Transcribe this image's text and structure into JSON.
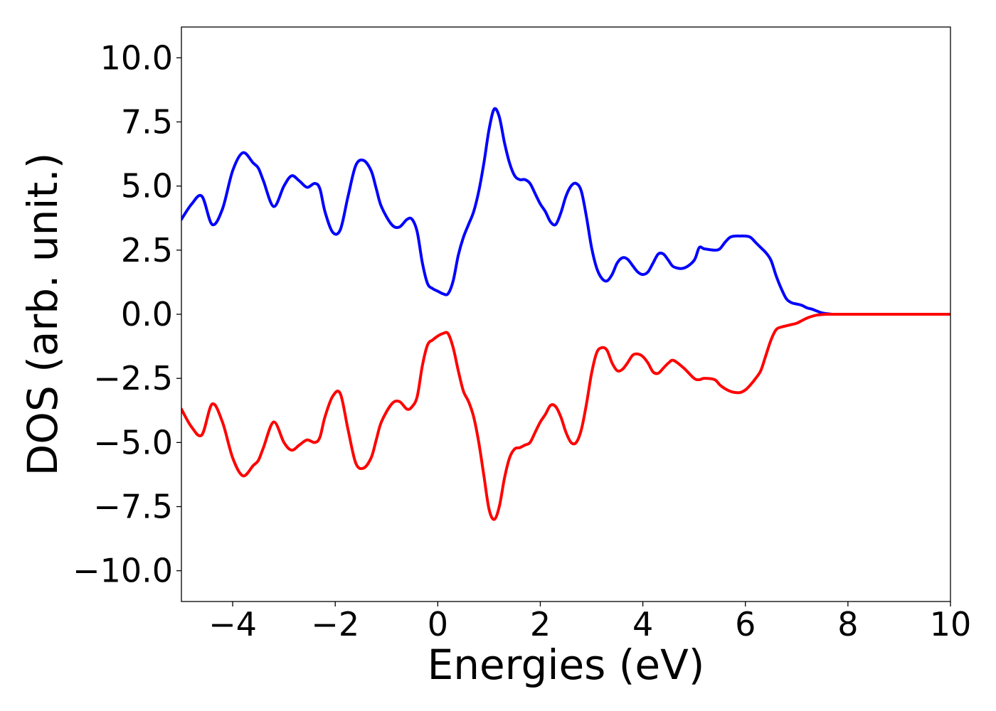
{
  "chart_data": {
    "type": "line",
    "title": "",
    "xlabel": "Energies (eV)",
    "ylabel": "DOS (arb. unit.)",
    "xlim": [
      -5,
      10
    ],
    "ylim": [
      -11.2,
      11.2
    ],
    "xticks": [
      -4,
      -2,
      0,
      2,
      4,
      6,
      8,
      10
    ],
    "xtick_labels": [
      "−4",
      "−2",
      "0",
      "2",
      "4",
      "6",
      "8",
      "10"
    ],
    "yticks": [
      10,
      7.5,
      5,
      2.5,
      0,
      -2.5,
      -5,
      -7.5,
      -10
    ],
    "ytick_labels": [
      "10.0",
      "7.5",
      "5.0",
      "2.5",
      "0.0",
      "−2.5",
      "−5.0",
      "−7.5",
      "−10.0"
    ],
    "grid": false,
    "legend": "none",
    "series": [
      {
        "color": "#0000ff",
        "x": [
          -5.0,
          -4.8,
          -4.6,
          -4.4,
          -4.2,
          -4.0,
          -3.8,
          -3.6,
          -3.5,
          -3.4,
          -3.2,
          -3.0,
          -2.85,
          -2.7,
          -2.55,
          -2.4,
          -2.3,
          -2.2,
          -2.05,
          -1.9,
          -1.75,
          -1.6,
          -1.45,
          -1.3,
          -1.2,
          -1.1,
          -0.9,
          -0.75,
          -0.6,
          -0.5,
          -0.4,
          -0.3,
          -0.2,
          -0.1,
          0.0,
          0.1,
          0.2,
          0.3,
          0.4,
          0.5,
          0.6,
          0.7,
          0.8,
          0.9,
          1.0,
          1.1,
          1.2,
          1.3,
          1.4,
          1.5,
          1.6,
          1.7,
          1.8,
          1.9,
          2.0,
          2.1,
          2.2,
          2.3,
          2.4,
          2.5,
          2.6,
          2.7,
          2.8,
          2.9,
          3.0,
          3.1,
          3.2,
          3.3,
          3.4,
          3.5,
          3.6,
          3.7,
          3.8,
          3.9,
          4.0,
          4.1,
          4.2,
          4.3,
          4.4,
          4.5,
          4.6,
          4.8,
          5.0,
          5.1,
          5.2,
          5.4,
          5.5,
          5.6,
          5.7,
          5.8,
          5.9,
          6.0,
          6.1,
          6.2,
          6.3,
          6.4,
          6.5,
          6.6,
          6.7,
          6.8,
          6.9,
          7.0,
          7.1,
          7.2,
          7.3,
          7.4,
          7.5,
          7.6,
          7.7,
          7.8,
          7.9,
          8.0,
          8.1,
          8.2,
          8.3,
          8.4,
          8.6,
          9.0,
          9.5,
          10.0
        ],
        "y": [
          3.7,
          4.3,
          4.6,
          3.5,
          4.1,
          5.6,
          6.3,
          5.9,
          5.7,
          5.2,
          4.2,
          5.0,
          5.4,
          5.2,
          4.95,
          5.1,
          4.9,
          4.0,
          3.2,
          3.3,
          4.6,
          5.8,
          6.0,
          5.6,
          4.9,
          4.2,
          3.5,
          3.4,
          3.7,
          3.7,
          3.2,
          2.0,
          1.2,
          1.0,
          0.9,
          0.8,
          0.8,
          1.3,
          2.3,
          3.0,
          3.5,
          4.0,
          4.8,
          5.9,
          7.2,
          8.0,
          7.7,
          6.7,
          5.9,
          5.4,
          5.25,
          5.25,
          5.1,
          4.7,
          4.3,
          4.0,
          3.6,
          3.5,
          3.95,
          4.6,
          5.0,
          5.1,
          4.8,
          3.8,
          2.6,
          1.8,
          1.4,
          1.3,
          1.55,
          2.0,
          2.2,
          2.15,
          1.9,
          1.65,
          1.55,
          1.65,
          2.0,
          2.35,
          2.35,
          2.1,
          1.85,
          1.8,
          2.1,
          2.6,
          2.55,
          2.5,
          2.55,
          2.8,
          3.0,
          3.05,
          3.05,
          3.05,
          3.0,
          2.8,
          2.6,
          2.4,
          2.1,
          1.5,
          1.0,
          0.6,
          0.45,
          0.4,
          0.35,
          0.25,
          0.2,
          0.12,
          0.05,
          0.02,
          0.0,
          0.0,
          0.0,
          0.0,
          0.0,
          0.0,
          0.0,
          0.0,
          0.0,
          0.0,
          0.0,
          0.0
        ]
      },
      {
        "color": "#ff0000",
        "x": [
          -5.0,
          -4.8,
          -4.6,
          -4.4,
          -4.2,
          -4.0,
          -3.8,
          -3.6,
          -3.5,
          -3.4,
          -3.2,
          -3.0,
          -2.85,
          -2.7,
          -2.55,
          -2.4,
          -2.3,
          -2.2,
          -2.05,
          -1.9,
          -1.75,
          -1.6,
          -1.45,
          -1.3,
          -1.2,
          -1.1,
          -0.9,
          -0.75,
          -0.6,
          -0.5,
          -0.4,
          -0.3,
          -0.2,
          -0.1,
          0.0,
          0.1,
          0.2,
          0.3,
          0.4,
          0.5,
          0.6,
          0.7,
          0.8,
          0.9,
          1.0,
          1.1,
          1.2,
          1.3,
          1.4,
          1.5,
          1.6,
          1.7,
          1.8,
          1.9,
          2.0,
          2.1,
          2.2,
          2.3,
          2.4,
          2.5,
          2.6,
          2.7,
          2.8,
          2.9,
          3.0,
          3.1,
          3.2,
          3.3,
          3.4,
          3.5,
          3.6,
          3.7,
          3.8,
          3.9,
          4.0,
          4.1,
          4.2,
          4.3,
          4.4,
          4.5,
          4.6,
          4.8,
          5.0,
          5.1,
          5.2,
          5.4,
          5.5,
          5.6,
          5.7,
          5.8,
          5.9,
          6.0,
          6.1,
          6.2,
          6.3,
          6.4,
          6.5,
          6.6,
          6.7,
          6.8,
          6.9,
          7.0,
          7.1,
          7.2,
          7.3,
          7.4,
          7.5,
          7.6,
          7.7,
          7.8,
          7.9,
          8.0,
          8.1,
          8.2,
          8.3,
          8.4,
          8.6,
          9.0,
          9.5,
          10.0
        ],
        "y": [
          -3.7,
          -4.4,
          -4.7,
          -3.5,
          -4.2,
          -5.6,
          -6.3,
          -5.9,
          -5.7,
          -5.2,
          -4.2,
          -5.0,
          -5.3,
          -5.1,
          -4.9,
          -5.0,
          -4.8,
          -4.0,
          -3.2,
          -3.1,
          -4.5,
          -5.8,
          -6.0,
          -5.6,
          -4.9,
          -4.2,
          -3.5,
          -3.4,
          -3.7,
          -3.6,
          -3.2,
          -2.0,
          -1.2,
          -1.0,
          -0.85,
          -0.75,
          -0.75,
          -1.3,
          -2.2,
          -3.0,
          -3.4,
          -4.0,
          -5.0,
          -6.3,
          -7.6,
          -8.0,
          -7.5,
          -6.4,
          -5.6,
          -5.25,
          -5.2,
          -5.1,
          -5.0,
          -4.6,
          -4.2,
          -3.9,
          -3.55,
          -3.6,
          -4.0,
          -4.6,
          -5.0,
          -5.0,
          -4.5,
          -3.5,
          -2.3,
          -1.5,
          -1.3,
          -1.4,
          -1.9,
          -2.2,
          -2.15,
          -1.9,
          -1.6,
          -1.55,
          -1.65,
          -1.9,
          -2.25,
          -2.3,
          -2.1,
          -1.9,
          -1.8,
          -2.1,
          -2.5,
          -2.55,
          -2.5,
          -2.55,
          -2.75,
          -2.9,
          -3.0,
          -3.05,
          -3.05,
          -2.95,
          -2.75,
          -2.5,
          -2.2,
          -1.6,
          -1.0,
          -0.6,
          -0.5,
          -0.45,
          -0.4,
          -0.35,
          -0.25,
          -0.15,
          -0.08,
          -0.03,
          -0.01,
          0.0,
          0.0,
          0.0,
          0.0,
          0.0,
          0.0,
          0.0,
          0.0,
          0.0,
          0.0,
          0.0,
          0.0,
          0.0
        ]
      }
    ]
  }
}
